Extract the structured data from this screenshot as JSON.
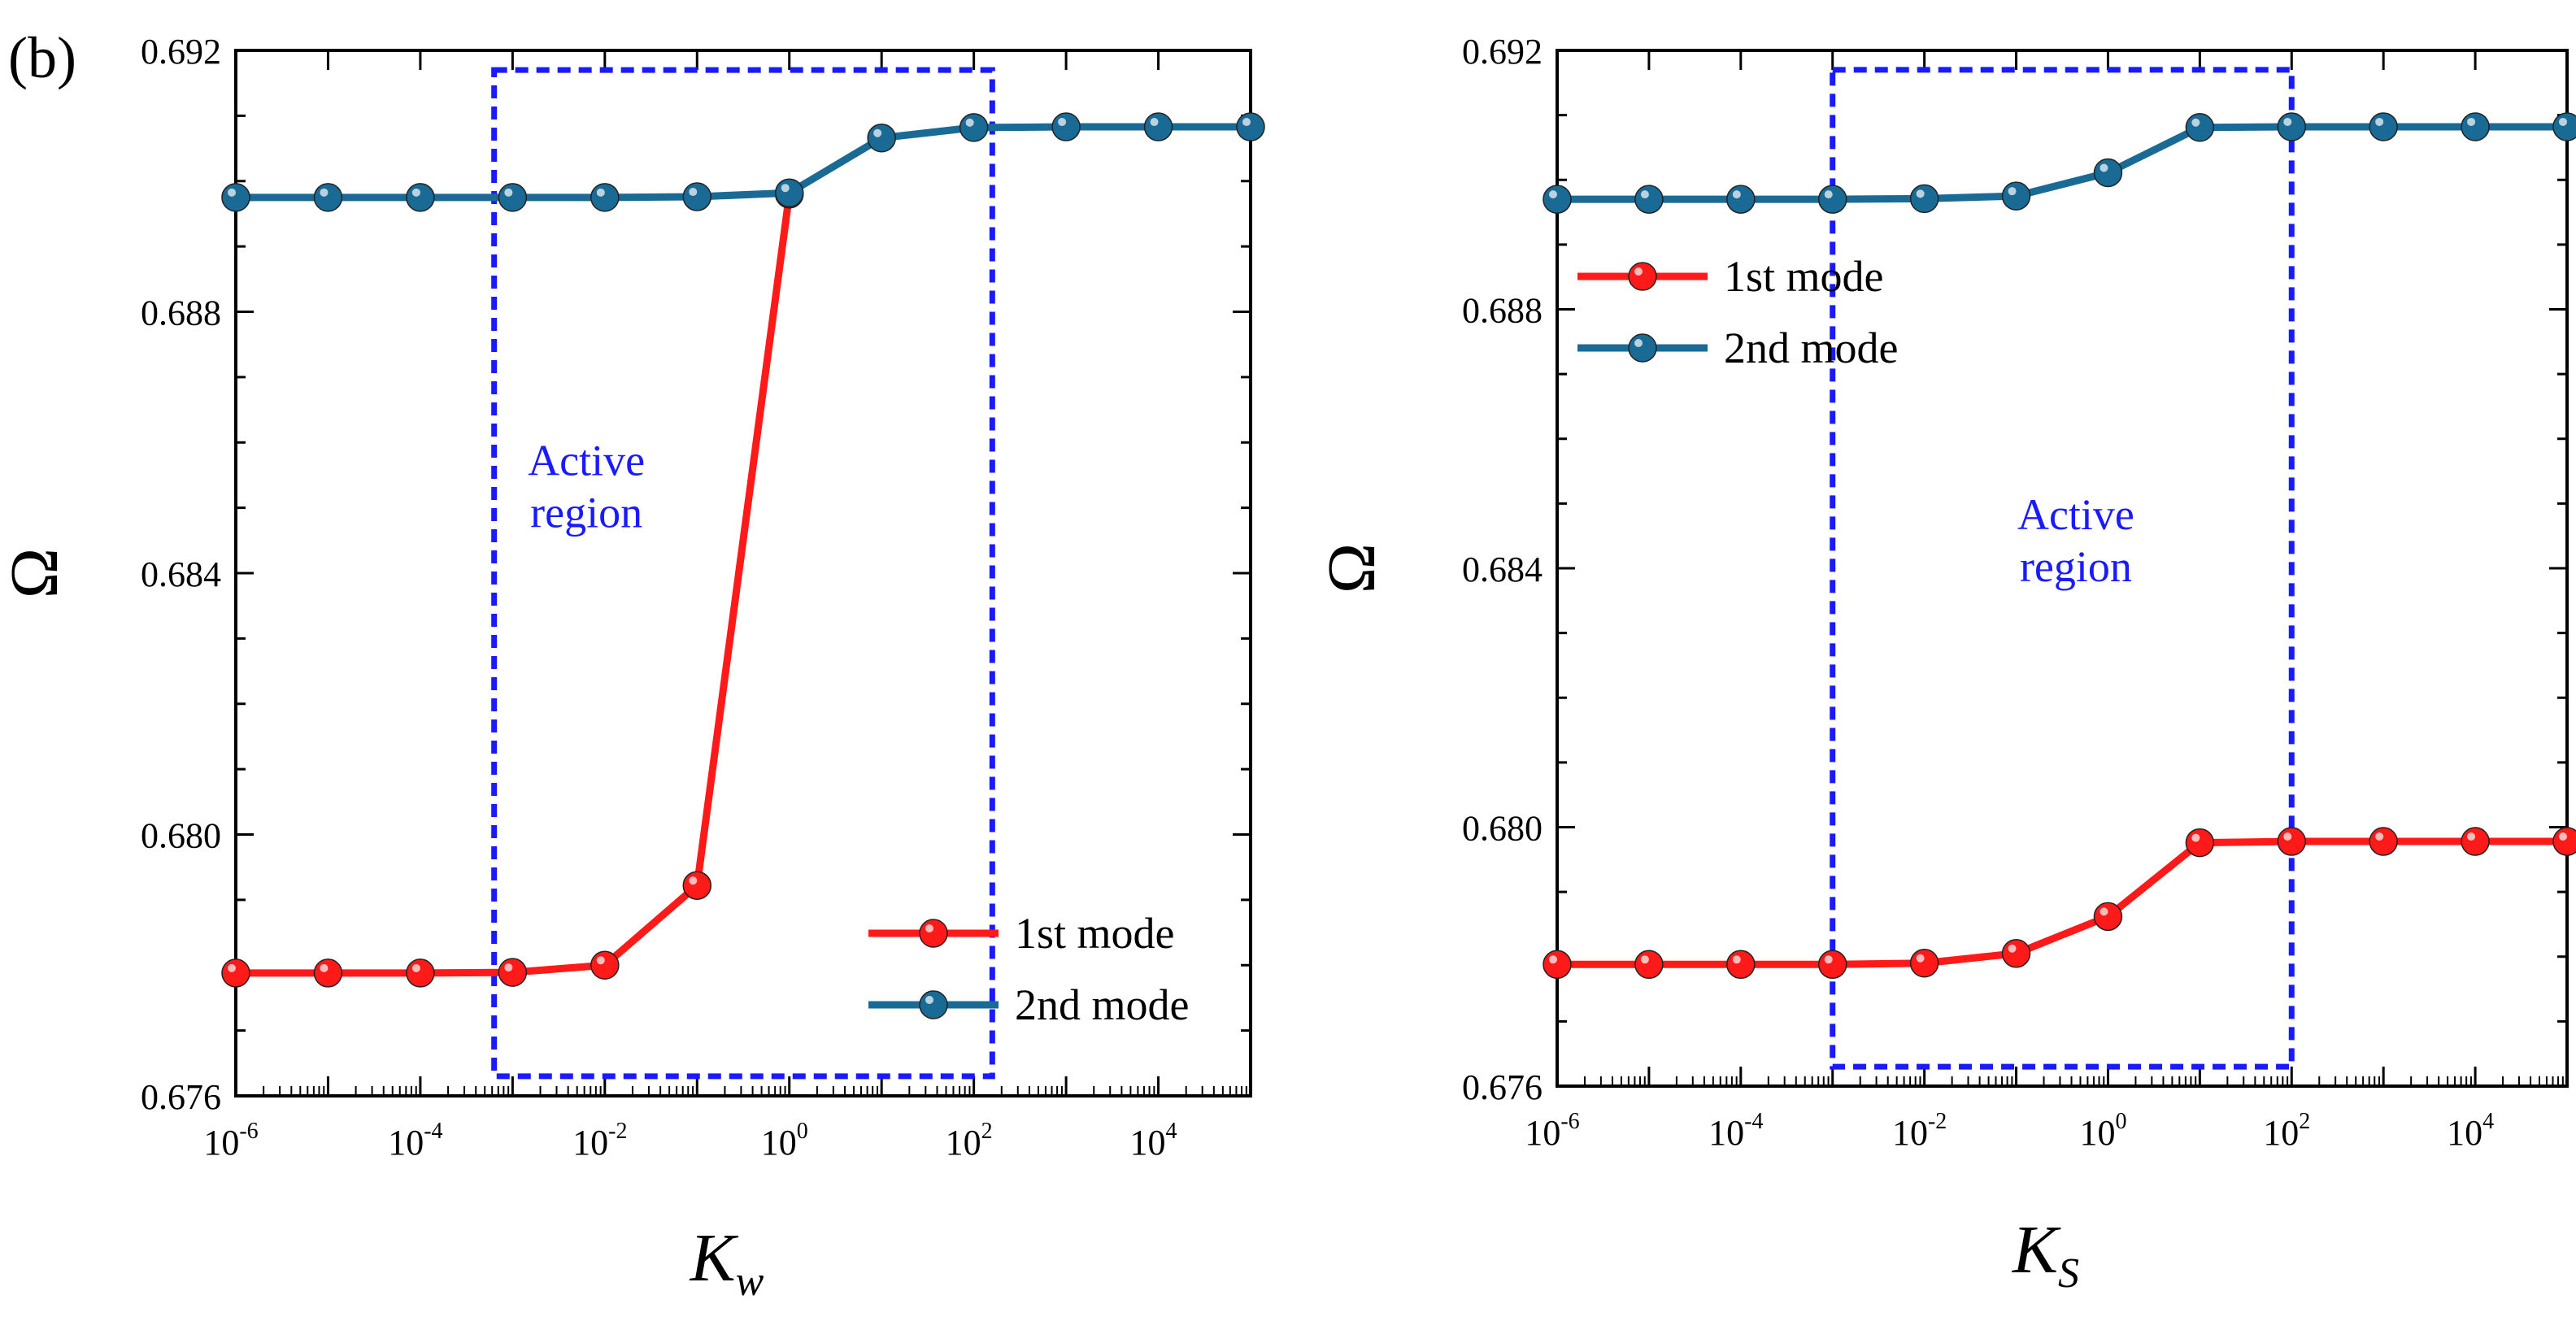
{
  "panel_label": "(b)",
  "colors": {
    "mode1": "#ff1a1a",
    "mode2": "#1a6a96",
    "region": "#1a1aff",
    "axis": "#000000"
  },
  "chart_data": [
    {
      "type": "line",
      "xscale": "log",
      "xlim": [
        -6,
        5
      ],
      "ylim": [
        0.676,
        0.692
      ],
      "xtick_exponents": [
        "-6",
        "-4",
        "-2",
        "0",
        "2",
        "4"
      ],
      "ytick_labels": [
        "0.676",
        "0.680",
        "0.684",
        "0.688",
        "0.692"
      ],
      "yticks": [
        0.676,
        0.68,
        0.684,
        0.688,
        0.692
      ],
      "xlabel_main": "K",
      "xlabel_sub": "w",
      "ylabel": "Ω",
      "legend_placement": "bottom-right",
      "annotation": {
        "line1": "Active",
        "line2": "region",
        "x_range_log10": [
          -3.2,
          2.2
        ],
        "y_range": [
          0.6763,
          0.6917
        ]
      },
      "annotation_text_pos": {
        "x_log10": -2.2,
        "y": 0.6855
      },
      "series": [
        {
          "name": "1st mode",
          "color_key": "mode1",
          "x_log10": [
            -6,
            -5,
            -4,
            -3,
            -2,
            -1,
            0
          ],
          "values": [
            0.67788,
            0.67788,
            0.67788,
            0.67789,
            0.678,
            0.67922,
            0.6898
          ]
        },
        {
          "name": "2nd mode",
          "color_key": "mode2",
          "x_log10": [
            -6,
            -5,
            -4,
            -3,
            -2,
            -1,
            0,
            1,
            2,
            3,
            4,
            5
          ],
          "values": [
            0.68975,
            0.68975,
            0.68975,
            0.68975,
            0.68975,
            0.68976,
            0.68982,
            0.69066,
            0.69082,
            0.69083,
            0.69083,
            0.69083
          ]
        }
      ]
    },
    {
      "type": "line",
      "xscale": "log",
      "xlim": [
        -6,
        5
      ],
      "ylim": [
        0.676,
        0.692
      ],
      "xtick_exponents": [
        "-6",
        "-4",
        "-2",
        "0",
        "2",
        "4"
      ],
      "ytick_labels": [
        "0.676",
        "0.680",
        "0.684",
        "0.688",
        "0.692"
      ],
      "yticks": [
        0.676,
        0.68,
        0.684,
        0.688,
        0.692
      ],
      "xlabel_main": "K",
      "xlabel_sub": "S",
      "ylabel": "Ω",
      "legend_placement": "top-left",
      "annotation": {
        "line1": "Active",
        "line2": "region",
        "x_range_log10": [
          -3,
          2
        ],
        "y_range": [
          0.6763,
          0.6917
        ]
      },
      "annotation_text_pos": {
        "x_log10": -0.35,
        "y": 0.6846
      },
      "series": [
        {
          "name": "1st mode",
          "color_key": "mode1",
          "x_log10": [
            -6,
            -5,
            -4,
            -3,
            -2,
            -1,
            0,
            1,
            2,
            3,
            4,
            5
          ],
          "values": [
            0.67788,
            0.67788,
            0.67788,
            0.67788,
            0.6779,
            0.67805,
            0.67862,
            0.67976,
            0.67978,
            0.67978,
            0.67978,
            0.67978
          ]
        },
        {
          "name": "2nd mode",
          "color_key": "mode2",
          "x_log10": [
            -6,
            -5,
            -4,
            -3,
            -2,
            -1,
            0,
            1,
            2,
            3,
            4,
            5
          ],
          "values": [
            0.6897,
            0.6897,
            0.6897,
            0.6897,
            0.68971,
            0.68975,
            0.69011,
            0.69081,
            0.69082,
            0.69082,
            0.69082,
            0.69082
          ]
        }
      ]
    }
  ]
}
